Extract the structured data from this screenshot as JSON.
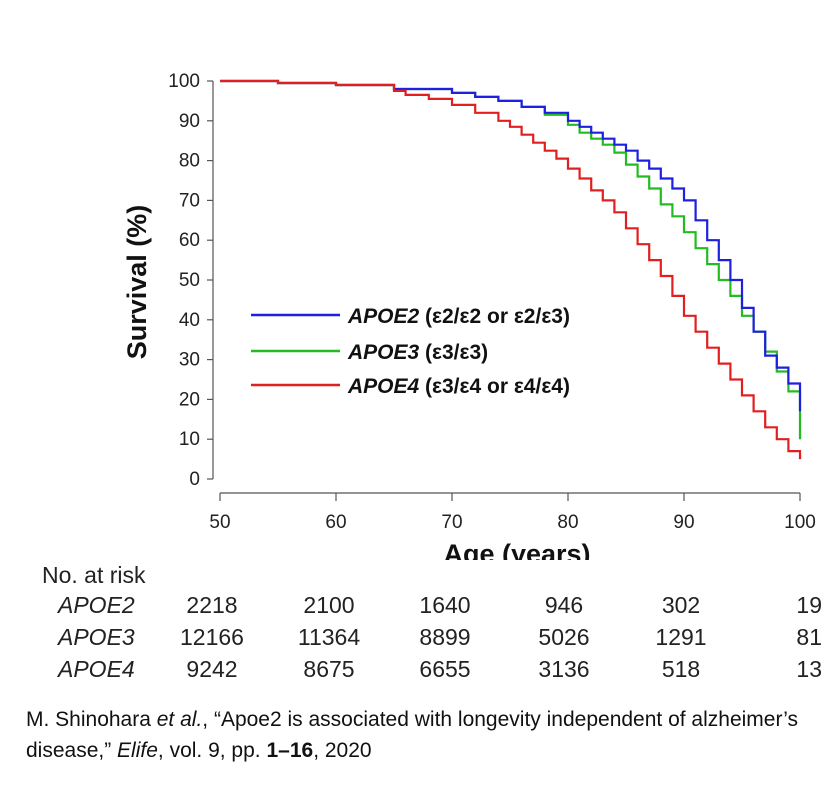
{
  "chart_data": {
    "type": "line",
    "title": "",
    "xlabel": "Age (years)",
    "ylabel": "Survival (%)",
    "xlim": [
      50,
      100
    ],
    "ylim": [
      0,
      100
    ],
    "xticks": [
      "50",
      "60",
      "70",
      "80",
      "90",
      "100"
    ],
    "yticks": [
      "0",
      "10",
      "20",
      "30",
      "40",
      "50",
      "60",
      "70",
      "80",
      "90",
      "100"
    ],
    "grid": false,
    "legend_position": "center-right",
    "series": [
      {
        "name": "APOE2",
        "legend_gene": "APOE2",
        "legend_detail": "(ε2/ε2 or ε2/ε3)",
        "color": "#1f1fe0",
        "x": [
          50,
          55,
          60,
          65,
          70,
          72,
          74,
          76,
          78,
          80,
          81,
          82,
          83,
          84,
          85,
          86,
          87,
          88,
          89,
          90,
          91,
          92,
          93,
          94,
          95,
          96,
          97,
          98,
          99,
          100
        ],
        "y": [
          100,
          99.5,
          99,
          98,
          97,
          96,
          95,
          93.5,
          92,
          90,
          88.5,
          87,
          85.5,
          84,
          82.5,
          80,
          78,
          75.5,
          73,
          70,
          65,
          60,
          55,
          50,
          43,
          37,
          31,
          28,
          24,
          17
        ]
      },
      {
        "name": "APOE3",
        "legend_gene": "APOE3",
        "legend_detail": "(ε3/ε3)",
        "color": "#22bb22",
        "x": [
          50,
          55,
          60,
          65,
          70,
          72,
          74,
          76,
          78,
          80,
          81,
          82,
          83,
          84,
          85,
          86,
          87,
          88,
          89,
          90,
          91,
          92,
          93,
          94,
          95,
          96,
          97,
          98,
          99,
          100
        ],
        "y": [
          100,
          99.5,
          99,
          98,
          97,
          96,
          95,
          93.5,
          91.5,
          89,
          87,
          85.5,
          84,
          82,
          79,
          76,
          73,
          69,
          66,
          62,
          58,
          54,
          50,
          46,
          41,
          37,
          32,
          27,
          22,
          10
        ]
      },
      {
        "name": "APOE4",
        "legend_gene": "APOE4",
        "legend_detail": "(ε3/ε4 or ε4/ε4)",
        "color": "#e02020",
        "x": [
          50,
          55,
          60,
          65,
          66,
          68,
          70,
          72,
          74,
          75,
          76,
          77,
          78,
          79,
          80,
          81,
          82,
          83,
          84,
          85,
          86,
          87,
          88,
          89,
          90,
          91,
          92,
          93,
          94,
          95,
          96,
          97,
          98,
          99,
          100
        ],
        "y": [
          100,
          99.5,
          99,
          97.5,
          96.5,
          95.5,
          94,
          92,
          90,
          88.5,
          86.5,
          84.5,
          82.5,
          80.5,
          78,
          75.5,
          72.5,
          70,
          67,
          63,
          59,
          55,
          51,
          46,
          41,
          37,
          33,
          29,
          25,
          21,
          17,
          13,
          10,
          7,
          5
        ]
      }
    ]
  },
  "risk_table": {
    "title": "No. at risk",
    "columns_age": [
      50,
      60,
      70,
      80,
      90,
      100
    ],
    "rows": [
      {
        "label": "APOE2",
        "values": [
          "2218",
          "2100",
          "1640",
          "946",
          "302",
          "19"
        ]
      },
      {
        "label": "APOE3",
        "values": [
          "12166",
          "11364",
          "8899",
          "5026",
          "1291",
          "81"
        ]
      },
      {
        "label": "APOE4",
        "values": [
          "9242",
          "8675",
          "6655",
          "3136",
          "518",
          "13"
        ]
      }
    ]
  },
  "citation": {
    "authors": "M. Shinohara ",
    "etal": "et al.",
    "title_part": ", “Apoe2 is associated with longevity independent of alzheimer’s disease,” ",
    "journal": "Elife",
    "vol_part": ", vol. 9, pp. ",
    "pages": "1–16",
    "year_part": ", 2020"
  }
}
